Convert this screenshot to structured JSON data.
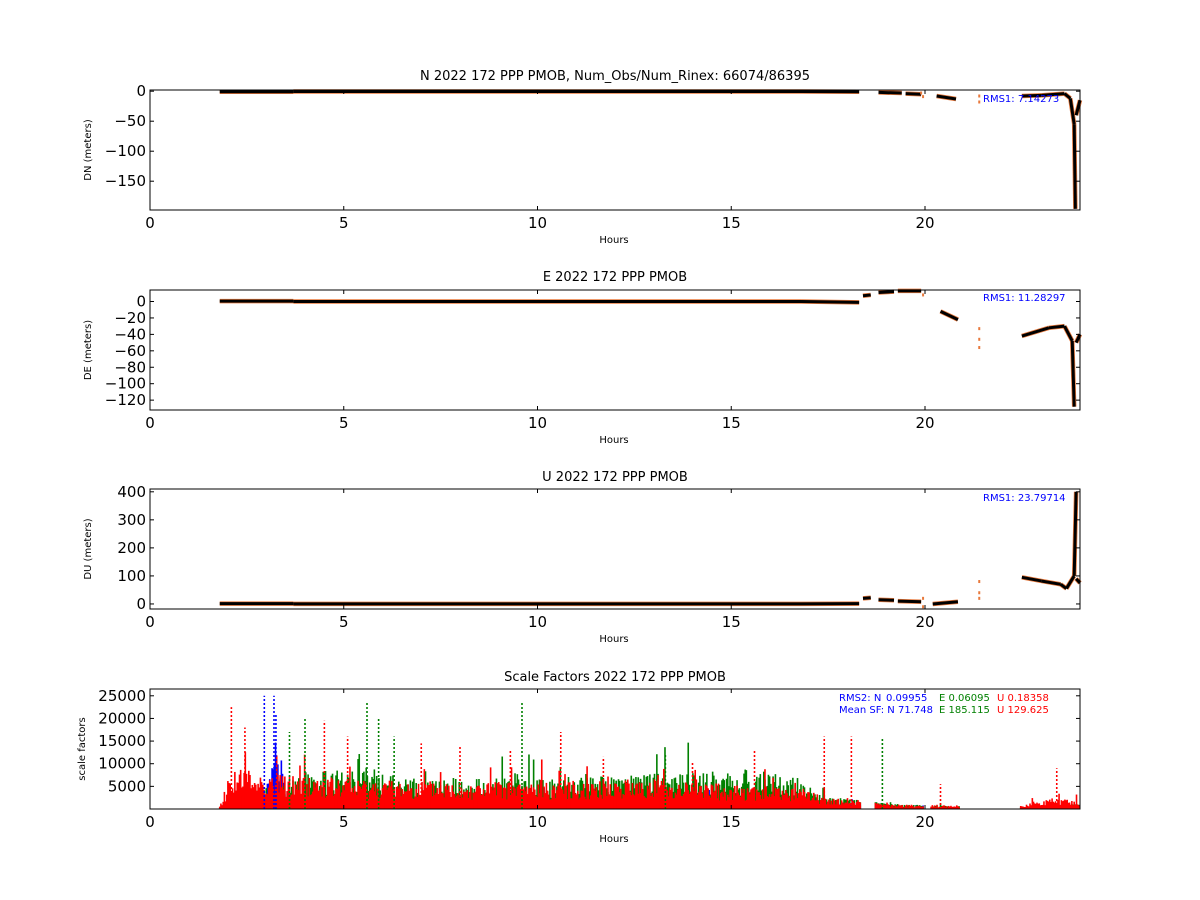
{
  "chart_data": [
    {
      "type": "scatter",
      "title": "N 2022 172 PPP  PMOB, Num_Obs/Num_Rinex: 66074/86395",
      "xlabel": "Hours",
      "ylabel": "DN (meters)",
      "xlim": [
        0,
        24
      ],
      "ylim": [
        -198,
        2
      ],
      "xticks": [
        "0",
        "5",
        "10",
        "15",
        "20"
      ],
      "yticks": [
        "0",
        "−50",
        "−100",
        "−150"
      ],
      "ytick_values": [
        0,
        -50,
        -100,
        -150
      ],
      "annotation": "RMS1:  7.14273",
      "series_colors": {
        "main": "#000000",
        "outlier": "#e8793c"
      },
      "segments": [
        {
          "x": [
            1.8,
            3.7
          ],
          "y": [
            -1,
            -1
          ]
        },
        {
          "x": [
            3.7,
            16.8
          ],
          "y": [
            -0.5,
            -0.5
          ]
        },
        {
          "x": [
            16.8,
            18.3
          ],
          "y": [
            -0.5,
            -1
          ]
        },
        {
          "x": [
            18.8,
            19.4
          ],
          "y": [
            -2,
            -3
          ]
        },
        {
          "x": [
            19.5,
            19.9
          ],
          "y": [
            -4,
            -5
          ]
        },
        {
          "x": [
            20.3,
            20.8
          ],
          "y": [
            -8,
            -13
          ]
        },
        {
          "x": [
            22.5,
            23.0
          ],
          "y": [
            -8,
            -7
          ]
        },
        {
          "x": [
            23.0,
            23.6
          ],
          "y": [
            -7,
            -4
          ]
        },
        {
          "x": [
            23.6,
            23.75
          ],
          "y": [
            -4,
            -12
          ]
        },
        {
          "x": [
            23.75,
            23.85
          ],
          "y": [
            -12,
            -55
          ]
        },
        {
          "x": [
            23.85,
            23.88
          ],
          "y": [
            -55,
            -196
          ]
        },
        {
          "x": [
            23.9,
            24.0
          ],
          "y": [
            -40,
            -15
          ]
        }
      ],
      "points": [
        {
          "x": 19.9,
          "y": -3
        },
        {
          "x": 19.95,
          "y": -9
        },
        {
          "x": 21.4,
          "y": -8
        },
        {
          "x": 21.4,
          "y": -18
        }
      ]
    },
    {
      "type": "scatter",
      "title": "E 2022 172 PPP  PMOB",
      "xlabel": "Hours",
      "ylabel": "DE (meters)",
      "xlim": [
        0,
        24
      ],
      "ylim": [
        -132,
        14
      ],
      "xticks": [
        "0",
        "5",
        "10",
        "15",
        "20"
      ],
      "yticks": [
        "0",
        "−20",
        "−40",
        "−60",
        "−80",
        "−100",
        "−120"
      ],
      "ytick_values": [
        0,
        -20,
        -40,
        -60,
        -80,
        -100,
        -120
      ],
      "annotation": "RMS1: 11.28297",
      "series_colors": {
        "main": "#000000",
        "outlier": "#e8793c"
      },
      "segments": [
        {
          "x": [
            1.8,
            3.7
          ],
          "y": [
            0.5,
            0.5
          ]
        },
        {
          "x": [
            3.7,
            16.8
          ],
          "y": [
            0,
            0
          ]
        },
        {
          "x": [
            16.8,
            18.3
          ],
          "y": [
            0,
            -1
          ]
        },
        {
          "x": [
            18.4,
            18.6
          ],
          "y": [
            7,
            8
          ]
        },
        {
          "x": [
            18.8,
            19.2
          ],
          "y": [
            11,
            12
          ]
        },
        {
          "x": [
            19.3,
            19.9
          ],
          "y": [
            13,
            13
          ]
        },
        {
          "x": [
            20.4,
            20.85
          ],
          "y": [
            -12,
            -22
          ]
        },
        {
          "x": [
            22.5,
            23.2
          ],
          "y": [
            -42,
            -32
          ]
        },
        {
          "x": [
            23.2,
            23.6
          ],
          "y": [
            -32,
            -30
          ]
        },
        {
          "x": [
            23.6,
            23.8
          ],
          "y": [
            -30,
            -48
          ]
        },
        {
          "x": [
            23.8,
            23.85
          ],
          "y": [
            -48,
            -128
          ]
        },
        {
          "x": [
            23.9,
            24.0
          ],
          "y": [
            -50,
            -40
          ]
        }
      ],
      "points": [
        {
          "x": 19.95,
          "y": 8
        },
        {
          "x": 21.4,
          "y": -33
        },
        {
          "x": 21.4,
          "y": -46
        },
        {
          "x": 21.4,
          "y": -56
        }
      ]
    },
    {
      "type": "scatter",
      "title": "U 2022 172 PPP  PMOB",
      "xlabel": "Hours",
      "ylabel": "DU (meters)",
      "xlim": [
        0,
        24
      ],
      "ylim": [
        -18,
        410
      ],
      "xticks": [
        "0",
        "5",
        "10",
        "15",
        "20"
      ],
      "yticks": [
        "0",
        "100",
        "200",
        "300",
        "400"
      ],
      "ytick_values": [
        0,
        100,
        200,
        300,
        400
      ],
      "annotation": "RMS1: 23.79714",
      "series_colors": {
        "main": "#000000",
        "outlier": "#e8793c"
      },
      "segments": [
        {
          "x": [
            1.8,
            3.7
          ],
          "y": [
            1,
            1
          ]
        },
        {
          "x": [
            3.7,
            16.8
          ],
          "y": [
            0.5,
            0.5
          ]
        },
        {
          "x": [
            16.8,
            18.3
          ],
          "y": [
            0.5,
            1
          ]
        },
        {
          "x": [
            18.4,
            18.6
          ],
          "y": [
            20,
            22
          ]
        },
        {
          "x": [
            18.8,
            19.2
          ],
          "y": [
            15,
            13
          ]
        },
        {
          "x": [
            19.3,
            19.9
          ],
          "y": [
            10,
            8
          ]
        },
        {
          "x": [
            20.2,
            20.85
          ],
          "y": [
            0,
            8
          ]
        },
        {
          "x": [
            22.5,
            23.0
          ],
          "y": [
            95,
            82
          ]
        },
        {
          "x": [
            23.0,
            23.5
          ],
          "y": [
            82,
            70
          ]
        },
        {
          "x": [
            23.5,
            23.65
          ],
          "y": [
            70,
            55
          ]
        },
        {
          "x": [
            23.65,
            23.85
          ],
          "y": [
            55,
            100
          ]
        },
        {
          "x": [
            23.85,
            23.9
          ],
          "y": [
            100,
            400
          ]
        },
        {
          "x": [
            23.9,
            24.0
          ],
          "y": [
            90,
            75
          ]
        }
      ],
      "points": [
        {
          "x": 19.95,
          "y": 20
        },
        {
          "x": 19.95,
          "y": -10
        },
        {
          "x": 21.4,
          "y": 80
        },
        {
          "x": 21.4,
          "y": 40
        },
        {
          "x": 21.4,
          "y": 20
        }
      ]
    },
    {
      "type": "bar",
      "title": "Scale Factors 2022 172 PPP  PMOB",
      "xlabel": "Hours",
      "ylabel": "scale factors",
      "xlim": [
        0,
        24
      ],
      "ylim": [
        0,
        26500
      ],
      "xticks": [
        "0",
        "5",
        "10",
        "15",
        "20"
      ],
      "yticks": [
        "5000",
        "10000",
        "15000",
        "20000",
        "25000"
      ],
      "ytick_values": [
        5000,
        10000,
        15000,
        20000,
        25000
      ],
      "annotations": {
        "rms2_label": "RMS2: N",
        "rms2_n": "0.09955",
        "rms2_e": "E  0.06095",
        "rms2_u": "U  0.18358",
        "mean_label": "Mean SF: N",
        "mean_n": "71.748",
        "mean_e": "E 185.115",
        "mean_u": "U 129.625"
      },
      "series": [
        {
          "name": "N",
          "color": "#0000ff",
          "profile": [
            [
              1.8,
              200
            ],
            [
              2.2,
              1500
            ],
            [
              3.0,
              3000
            ],
            [
              3.3,
              15000
            ],
            [
              3.5,
              3000
            ],
            [
              5,
              2000
            ],
            [
              10,
              2000
            ],
            [
              15,
              2000
            ],
            [
              16.8,
              1500
            ],
            [
              18.3,
              800
            ],
            [
              19,
              400
            ],
            [
              20.8,
              300
            ],
            [
              22.5,
              200
            ],
            [
              24,
              300
            ]
          ]
        },
        {
          "name": "E",
          "color": "#008000",
          "profile": [
            [
              1.8,
              300
            ],
            [
              2.2,
              2500
            ],
            [
              3.5,
              4000
            ],
            [
              4,
              6000
            ],
            [
              5.6,
              7000
            ],
            [
              6.5,
              5000
            ],
            [
              10,
              5000
            ],
            [
              13,
              6000
            ],
            [
              15.5,
              6500
            ],
            [
              16.8,
              5000
            ],
            [
              17.5,
              2000
            ],
            [
              18.3,
              1500
            ],
            [
              19,
              900
            ],
            [
              20.8,
              500
            ],
            [
              22.5,
              400
            ],
            [
              24,
              900
            ]
          ]
        },
        {
          "name": "U",
          "color": "#ff0000",
          "profile": [
            [
              1.8,
              400
            ],
            [
              2.1,
              7000
            ],
            [
              3.0,
              6000
            ],
            [
              5,
              5000
            ],
            [
              8,
              4500
            ],
            [
              10,
              4500
            ],
            [
              13,
              5000
            ],
            [
              15,
              4000
            ],
            [
              16.8,
              3500
            ],
            [
              17.5,
              1800
            ],
            [
              18.3,
              1500
            ],
            [
              19,
              800
            ],
            [
              20.8,
              600
            ],
            [
              22.5,
              800
            ],
            [
              23.4,
              2000
            ],
            [
              24,
              1200
            ]
          ]
        }
      ],
      "spikes": [
        {
          "x": 2.1,
          "y": 22500,
          "c": "#ff0000"
        },
        {
          "x": 2.45,
          "y": 18000,
          "c": "#ff0000"
        },
        {
          "x": 2.95,
          "y": 25000,
          "c": "#0000ff"
        },
        {
          "x": 3.2,
          "y": 25000,
          "c": "#0000ff"
        },
        {
          "x": 3.25,
          "y": 21000,
          "c": "#0000ff"
        },
        {
          "x": 3.6,
          "y": 17000,
          "c": "#008000"
        },
        {
          "x": 4.0,
          "y": 20000,
          "c": "#008000"
        },
        {
          "x": 4.5,
          "y": 19500,
          "c": "#ff0000"
        },
        {
          "x": 5.1,
          "y": 16000,
          "c": "#ff0000"
        },
        {
          "x": 5.6,
          "y": 23500,
          "c": "#008000"
        },
        {
          "x": 5.9,
          "y": 20000,
          "c": "#008000"
        },
        {
          "x": 6.3,
          "y": 16000,
          "c": "#008000"
        },
        {
          "x": 7.0,
          "y": 14500,
          "c": "#ff0000"
        },
        {
          "x": 8.0,
          "y": 14000,
          "c": "#ff0000"
        },
        {
          "x": 9.3,
          "y": 13000,
          "c": "#ff0000"
        },
        {
          "x": 9.6,
          "y": 23500,
          "c": "#008000"
        },
        {
          "x": 10.6,
          "y": 17000,
          "c": "#ff0000"
        },
        {
          "x": 11.7,
          "y": 11500,
          "c": "#ff0000"
        },
        {
          "x": 13.3,
          "y": 12000,
          "c": "#008000"
        },
        {
          "x": 14.0,
          "y": 10500,
          "c": "#ff0000"
        },
        {
          "x": 15.6,
          "y": 13000,
          "c": "#ff0000"
        },
        {
          "x": 17.4,
          "y": 16000,
          "c": "#ff0000"
        },
        {
          "x": 18.1,
          "y": 16000,
          "c": "#ff0000"
        },
        {
          "x": 18.9,
          "y": 15500,
          "c": "#008000"
        },
        {
          "x": 20.4,
          "y": 5500,
          "c": "#ff0000"
        },
        {
          "x": 23.4,
          "y": 9000,
          "c": "#ff0000"
        }
      ]
    }
  ]
}
